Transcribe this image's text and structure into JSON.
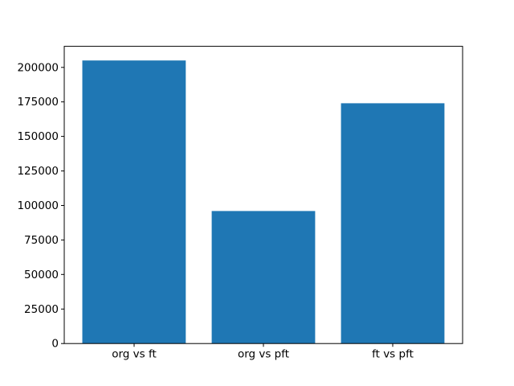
{
  "chart_data": {
    "type": "bar",
    "categories": [
      "org vs ft",
      "org vs pft",
      "ft vs pft"
    ],
    "values": [
      205000,
      96000,
      174000
    ],
    "yticks": [
      0,
      25000,
      50000,
      75000,
      100000,
      125000,
      150000,
      175000,
      200000
    ],
    "ytick_labels": [
      "0",
      "25000",
      "50000",
      "75000",
      "100000",
      "125000",
      "150000",
      "175000",
      "200000"
    ],
    "ylim": [
      0,
      215250
    ],
    "xlim": [
      -0.54,
      2.54
    ],
    "bar_width": 0.8,
    "bar_color": "#1f77b4",
    "axis_color": "#000000",
    "text_color": "#000000",
    "background_color": "#ffffff",
    "grid": false,
    "legend": "none"
  }
}
